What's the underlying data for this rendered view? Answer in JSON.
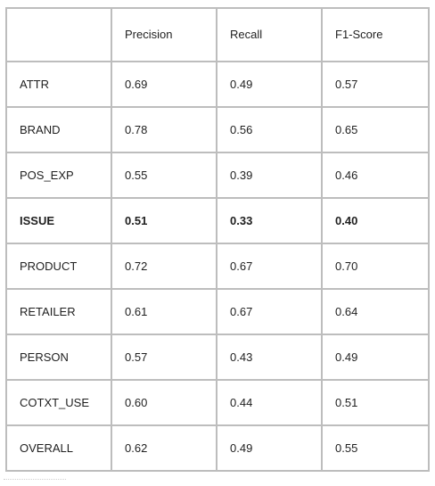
{
  "table": {
    "headers": [
      "",
      "Precision",
      "Recall",
      "F1-Score"
    ],
    "rows": [
      {
        "label": "ATTR",
        "precision": "0.69",
        "recall": "0.49",
        "f1": "0.57",
        "bold": false
      },
      {
        "label": "BRAND",
        "precision": "0.78",
        "recall": "0.56",
        "f1": "0.65",
        "bold": false
      },
      {
        "label": "POS_EXP",
        "precision": "0.55",
        "recall": "0.39",
        "f1": "0.46",
        "bold": false
      },
      {
        "label": "ISSUE",
        "precision": "0.51",
        "recall": "0.33",
        "f1": "0.40",
        "bold": true
      },
      {
        "label": "PRODUCT",
        "precision": "0.72",
        "recall": "0.67",
        "f1": "0.70",
        "bold": false
      },
      {
        "label": "RETAILER",
        "precision": "0.61",
        "recall": "0.67",
        "f1": "0.64",
        "bold": false
      },
      {
        "label": "PERSON",
        "precision": "0.57",
        "recall": "0.43",
        "f1": "0.49",
        "bold": false
      },
      {
        "label": "COTXT_USE",
        "precision": "0.60",
        "recall": "0.44",
        "f1": "0.51",
        "bold": false
      },
      {
        "label": "OVERALL",
        "precision": "0.62",
        "recall": "0.49",
        "f1": "0.55",
        "bold": false
      }
    ]
  },
  "colors": {
    "border": "#bdbdbd",
    "text": "#1f1f1f",
    "background": "#ffffff"
  }
}
